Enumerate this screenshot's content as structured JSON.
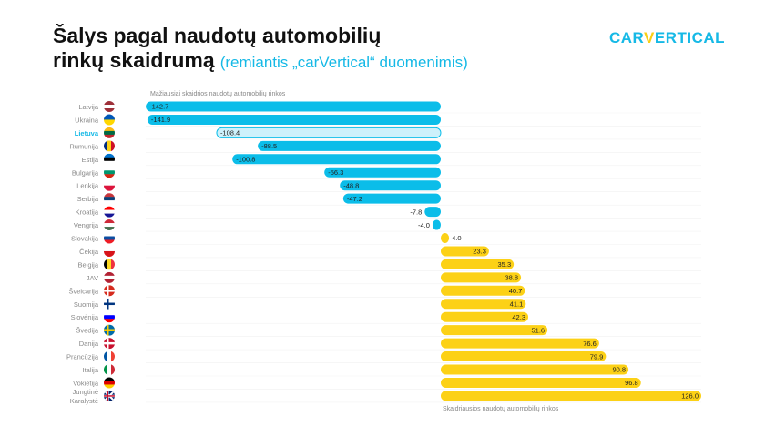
{
  "header": {
    "title_line1": "Šalys pagal naudotų automobilių",
    "title_line2": "rinkų skaidrumą",
    "subtitle": "(remiantis „carVertical“ duomenimis)"
  },
  "logo": {
    "part1": "CAR",
    "part2": "V",
    "part3": "ERTICAL"
  },
  "colors": {
    "negative": "#0bbde9",
    "positive": "#fcd116",
    "highlight_fill": "#cdf1fb",
    "highlight_text": "#16b9e6"
  },
  "chart_data": {
    "type": "bar",
    "orientation": "horizontal",
    "top_note": "Mažiausiai skaidrios naudotų automobilių rinkos",
    "bottom_note": "Skaidriausios naudotų automobilių rinkos",
    "highlight": "Lietuva",
    "categories": [
      "Latvija",
      "Ukraina",
      "Lietuva",
      "Rumunija",
      "Estija",
      "Bulgarija",
      "Lenkija",
      "Serbija",
      "Kroatija",
      "Vengrija",
      "Slovakija",
      "Čekija",
      "Belgija",
      "JAV",
      "Šveicarija",
      "Suomija",
      "Slovėnija",
      "Švedija",
      "Danija",
      "Prancūzija",
      "Italija",
      "Vokietija",
      "Jungtinė Karalystė"
    ],
    "values": [
      -142.7,
      -141.9,
      -108.4,
      -88.5,
      -100.8,
      -56.3,
      -48.8,
      -47.2,
      -7.8,
      -4.0,
      4.0,
      23.3,
      35.3,
      38.8,
      40.7,
      41.1,
      42.3,
      51.6,
      76.6,
      79.9,
      90.8,
      96.8,
      126.0
    ],
    "labels": [
      "-142.7",
      "-141.9",
      "-108.4",
      "-88.5",
      "-100.8",
      "-56.3",
      "-48.8",
      "-47.2",
      "-7.8",
      "-4.0",
      "4.0",
      "23.3",
      "35.3",
      "38.8",
      "40.7",
      "41.1",
      "42.3",
      "51.6",
      "76.6",
      "79.9",
      "90.8",
      "96.8",
      "126.0"
    ],
    "flags": [
      [
        "#9e3039",
        "#fff",
        "#9e3039"
      ],
      [
        "#0057b7",
        "#ffd700"
      ],
      [
        "#fdb913",
        "#006a44",
        "#c1272d"
      ],
      [
        "#002b7f",
        "#fcd116",
        "#ce1126",
        "v"
      ],
      [
        "#0072ce",
        "#000",
        "#fff"
      ],
      [
        "#fff",
        "#00966e",
        "#d62612"
      ],
      [
        "#fff",
        "#dc143c"
      ],
      [
        "#c6363c",
        "#0c4076",
        "#fff"
      ],
      [
        "#ff0000",
        "#fff",
        "#171796"
      ],
      [
        "#ce2939",
        "#fff",
        "#477050"
      ],
      [
        "#fff",
        "#0b4ea2",
        "#ee1c25"
      ],
      [
        "#fff",
        "#d7141a"
      ],
      [
        "#000",
        "#fdda24",
        "#ef3340",
        "v"
      ],
      [
        "#b22234",
        "#fff",
        "#b22234"
      ],
      [
        "#d52b1e",
        "#d52b1e"
      ],
      [
        "#fff",
        "#fff"
      ],
      [
        "#fff",
        "#0000ff",
        "#ff0000"
      ],
      [
        "#006aa7",
        "#006aa7"
      ],
      [
        "#c8102e",
        "#c8102e"
      ],
      [
        "#0055a4",
        "#fff",
        "#ef4135",
        "v"
      ],
      [
        "#009246",
        "#fff",
        "#ce2b37",
        "v"
      ],
      [
        "#000",
        "#dd0000",
        "#ffce00"
      ],
      [
        "#012169",
        "#012169"
      ]
    ]
  }
}
